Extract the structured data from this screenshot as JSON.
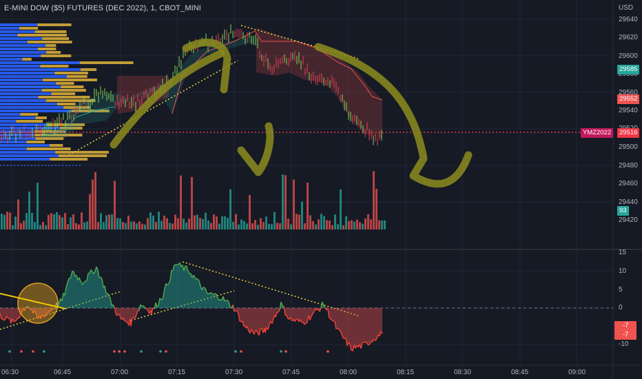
{
  "header": {
    "title": "E-MINI DOW ($5) FUTURES (DEC 2022), 1, CBOT_MINI",
    "currency": "USD"
  },
  "price_axis": {
    "ticks": [
      "29640",
      "29620",
      "29600",
      "29580",
      "29560",
      "29540",
      "29520",
      "29500",
      "29480",
      "29460",
      "29440",
      "29420"
    ],
    "badges": [
      {
        "text": "29585",
        "color": "#26a69a"
      },
      {
        "text": "29552",
        "color": "#ef5350"
      },
      {
        "text": "29516",
        "color": "#f23645"
      },
      {
        "text": "93",
        "color": "#26a69a"
      }
    ],
    "symbol_badge": "YMZ2022"
  },
  "oscillator_axis": {
    "ticks": [
      "15",
      "10",
      "5",
      "0",
      "-5",
      "-10"
    ],
    "badges": [
      {
        "text": "-7",
        "color": "#ef5350"
      },
      {
        "text": "-7",
        "color": "#ef5350"
      }
    ]
  },
  "time_axis": {
    "ticks": [
      "06:30",
      "06:45",
      "07:00",
      "07:15",
      "07:30",
      "07:45",
      "08:00",
      "08:15",
      "08:30",
      "08:45",
      "09:00"
    ]
  },
  "colors": {
    "background": "#161a25",
    "up": "#26a69a",
    "down": "#ef5350",
    "candle_up": "#7ed957",
    "candle_down": "#e0405a",
    "profile_blue": "#2962ff",
    "profile_gold": "#e0b43a",
    "annotation": "#8c8c1e",
    "trendline": "#f0d43a"
  },
  "chart_data": [
    {
      "type": "line",
      "title": "",
      "ylim": [
        29410,
        29650
      ],
      "current_price": 29516,
      "x": [
        "06:30",
        "06:45",
        "07:00",
        "07:15",
        "07:30",
        "07:45",
        "08:00"
      ],
      "y": [
        29515,
        29525,
        29545,
        29620,
        29630,
        29580,
        29510
      ]
    },
    {
      "type": "line",
      "title": "",
      "ylim": [
        -13,
        16
      ],
      "x": [
        "06:30",
        "06:45",
        "07:00",
        "07:15",
        "07:30",
        "07:45",
        "08:00"
      ],
      "y": [
        -2,
        1,
        -2,
        12,
        3,
        1,
        -7
      ]
    }
  ]
}
